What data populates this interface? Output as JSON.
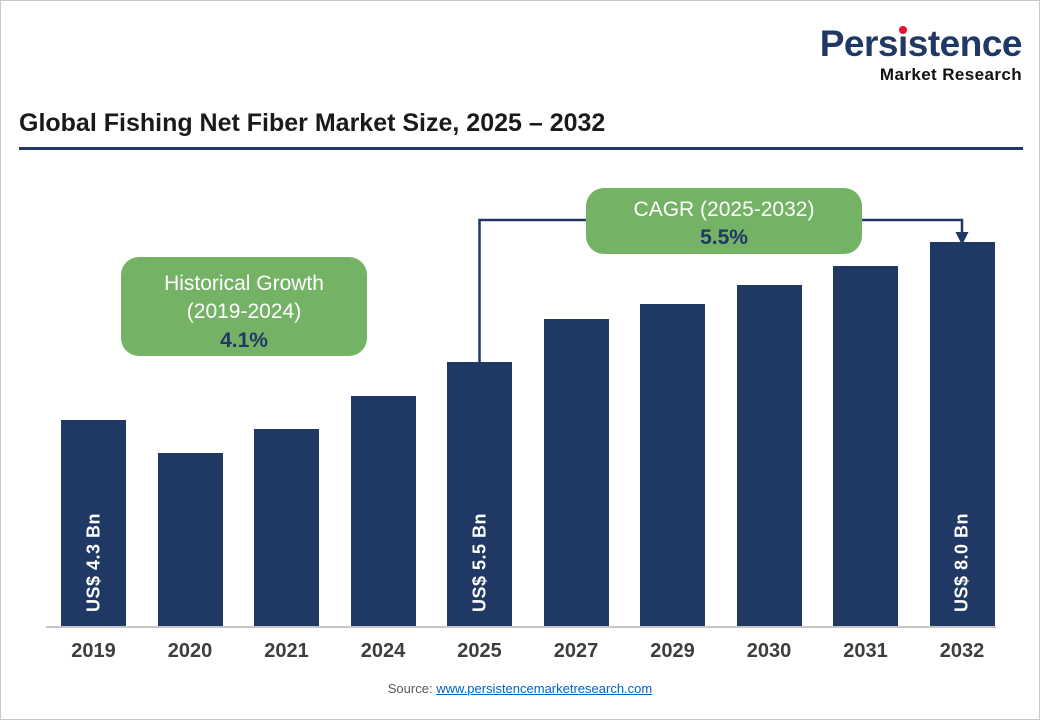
{
  "logo": {
    "brand_pre": "Pers",
    "brand_i": "i",
    "brand_post": "stence",
    "sub": "Market Research"
  },
  "header": {
    "title": "Global Fishing Net Fiber Market Size, 2025 – 2032"
  },
  "callouts": {
    "historical": {
      "line1": "Historical Growth",
      "line2": "(2019-2024)",
      "value": "4.1%"
    },
    "cagr": {
      "line1": "CAGR (2025-2032)",
      "value": "5.5%"
    }
  },
  "source": {
    "prefix": "Source:",
    "link": "www.persistencemarketresearch.com"
  },
  "colors": {
    "bar": "#1F3864",
    "navy": "#1F3864",
    "green": "#74B266",
    "red": "#E8112D",
    "link": "#0563C1"
  },
  "chart_data": {
    "type": "bar",
    "title": "Global Fishing Net Fiber Market Size, 2025 – 2032",
    "categories": [
      "2019",
      "2020",
      "2021",
      "2024",
      "2025",
      "2027",
      "2029",
      "2030",
      "2031",
      "2032"
    ],
    "values": [
      4.3,
      3.6,
      4.1,
      4.8,
      5.5,
      6.4,
      6.7,
      7.1,
      7.5,
      8.0
    ],
    "unit": "US$ Bn",
    "bar_labels": {
      "0": "US$ 4.3 Bn",
      "4": "US$ 5.5 Bn",
      "9": "US$ 8.0 Bn"
    },
    "ylim": [
      0,
      9
    ],
    "grid": false,
    "legend": false,
    "annotations": [
      {
        "text": "Historical Growth (2019-2024): 4.1%",
        "applies_to": [
          "2019",
          "2024"
        ]
      },
      {
        "text": "CAGR (2025-2032): 5.5%",
        "applies_to": [
          "2025",
          "2032"
        ],
        "connector": "bracket-arrow"
      }
    ]
  }
}
